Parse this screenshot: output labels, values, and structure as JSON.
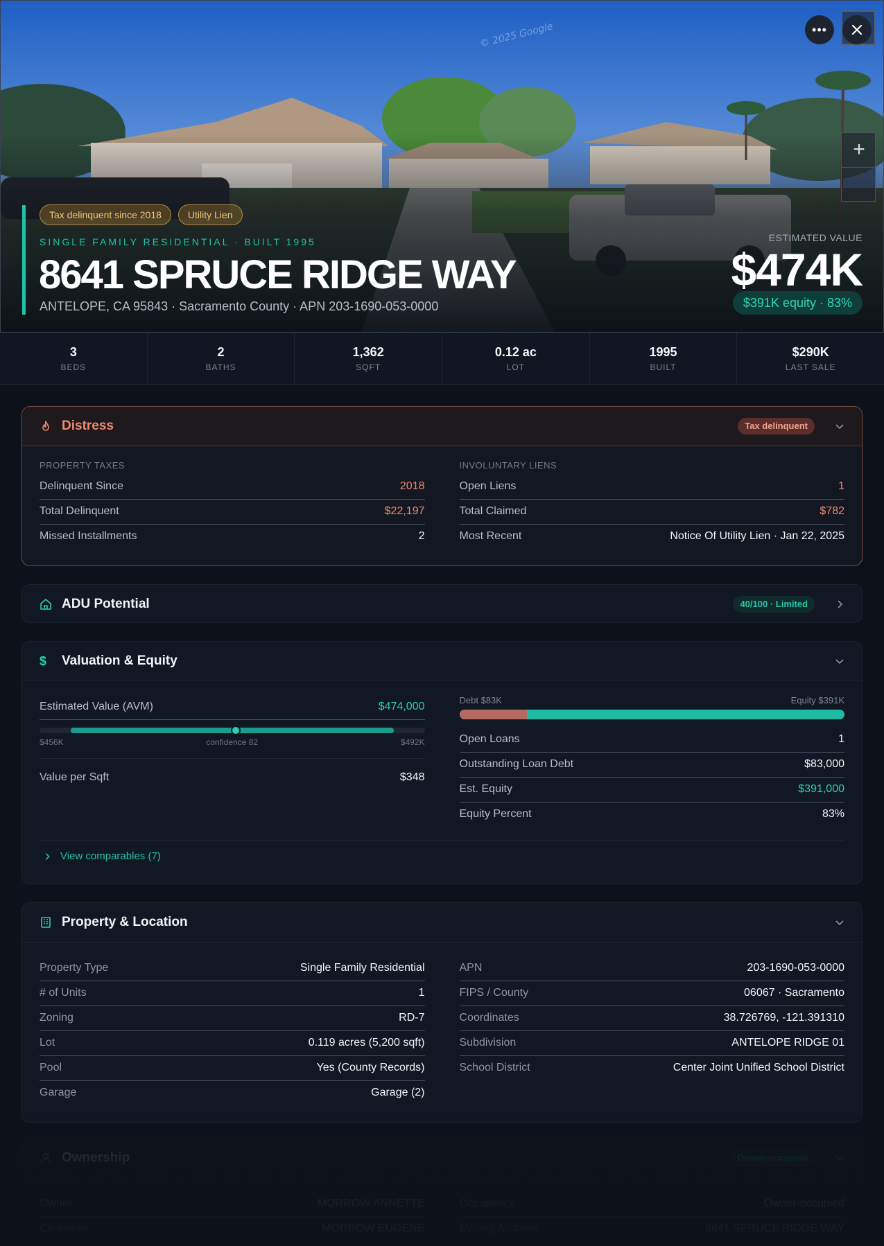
{
  "hero": {
    "watermark": "© 2025 Google",
    "more_icon": "ellipsis-icon",
    "close_icon": "close-icon",
    "zoom_in": "+",
    "chips": [
      "Tax delinquent since 2018",
      "Utility Lien"
    ],
    "eyebrow": "SINGLE FAMILY RESIDENTIAL · BUILT 1995",
    "address": "8641 SPRUCE RIDGE WAY",
    "subaddress": "ANTELOPE, CA 95843 · Sacramento County · APN 203-1690-053-0000",
    "est_label": "ESTIMATED VALUE",
    "est_value": "$474K",
    "equity": "$391K equity · 83%"
  },
  "stats": [
    {
      "value": "3",
      "label": "BEDS"
    },
    {
      "value": "2",
      "label": "BATHS"
    },
    {
      "value": "1,362",
      "label": "SQFT"
    },
    {
      "value": "0.12 ac",
      "label": "LOT"
    },
    {
      "value": "1995",
      "label": "BUILT"
    },
    {
      "value": "$290K",
      "label": "LAST SALE"
    }
  ],
  "distress": {
    "title": "Distress",
    "badge": "Tax delinquent",
    "left_label": "PROPERTY TAXES",
    "left": [
      {
        "k": "Delinquent Since",
        "v": "2018"
      },
      {
        "k": "Total Delinquent",
        "v": "$22,197"
      },
      {
        "k": "Missed Installments",
        "v": "2"
      }
    ],
    "right_label": "INVOLUNTARY LIENS",
    "right": [
      {
        "k": "Open Liens",
        "v": "1"
      },
      {
        "k": "Total Claimed",
        "v": "$782"
      },
      {
        "k": "Most Recent",
        "v": "Notice Of Utility Lien · Jan 22, 2025"
      }
    ]
  },
  "adu": {
    "title": "ADU Potential",
    "badge": "40/100 · Limited"
  },
  "valuation": {
    "title": "Valuation & Equity",
    "avm_label": "Estimated Value (AVM)",
    "avm_value": "$474,000",
    "range_low": "$456K",
    "confidence": "confidence 82",
    "range_high": "$492K",
    "vps_label": "Value per Sqft",
    "vps_value": "$348",
    "debt_label": "Debt $83K",
    "equity_label": "Equity $391K",
    "debt_fraction": 0.175,
    "rows": [
      {
        "k": "Open Loans",
        "v": "1"
      },
      {
        "k": "Outstanding Loan Debt",
        "v": "$83,000"
      },
      {
        "k": "Est. Equity",
        "v": "$391,000"
      },
      {
        "k": "Equity Percent",
        "v": "83%"
      }
    ],
    "comps": "View comparables (7)"
  },
  "property": {
    "title": "Property & Location",
    "left": [
      {
        "k": "Property Type",
        "v": "Single Family Residential"
      },
      {
        "k": "# of Units",
        "v": "1"
      },
      {
        "k": "Zoning",
        "v": "RD-7"
      },
      {
        "k": "Lot",
        "v": "0.119 acres (5,200 sqft)"
      },
      {
        "k": "Pool",
        "v": "Yes (County Records)"
      },
      {
        "k": "Garage",
        "v": "Garage (2)"
      }
    ],
    "right": [
      {
        "k": "APN",
        "v": "203-1690-053-0000"
      },
      {
        "k": "FIPS / County",
        "v": "06067 · Sacramento"
      },
      {
        "k": "Coordinates",
        "v": "38.726769, -121.391310"
      },
      {
        "k": "Subdivision",
        "v": "ANTELOPE RIDGE 01"
      },
      {
        "k": "School District",
        "v": "Center Joint Unified School District"
      }
    ]
  },
  "ownership": {
    "title": "Ownership",
    "badge": "Owner-occupied",
    "left": [
      {
        "k": "Owner",
        "v": "MORROW ANNETTE"
      },
      {
        "k": "Co-owner",
        "v": "MORROW EUGENE"
      }
    ],
    "right": [
      {
        "k": "Occupancy",
        "v": "Owner-occupied"
      },
      {
        "k": "Mailing Address",
        "v": "8641 SPRUCE RIDGE WAY"
      }
    ]
  },
  "colors": {
    "accent": "#1fc2a8",
    "distress": "#ef8a72",
    "chip": "#f0c878"
  }
}
